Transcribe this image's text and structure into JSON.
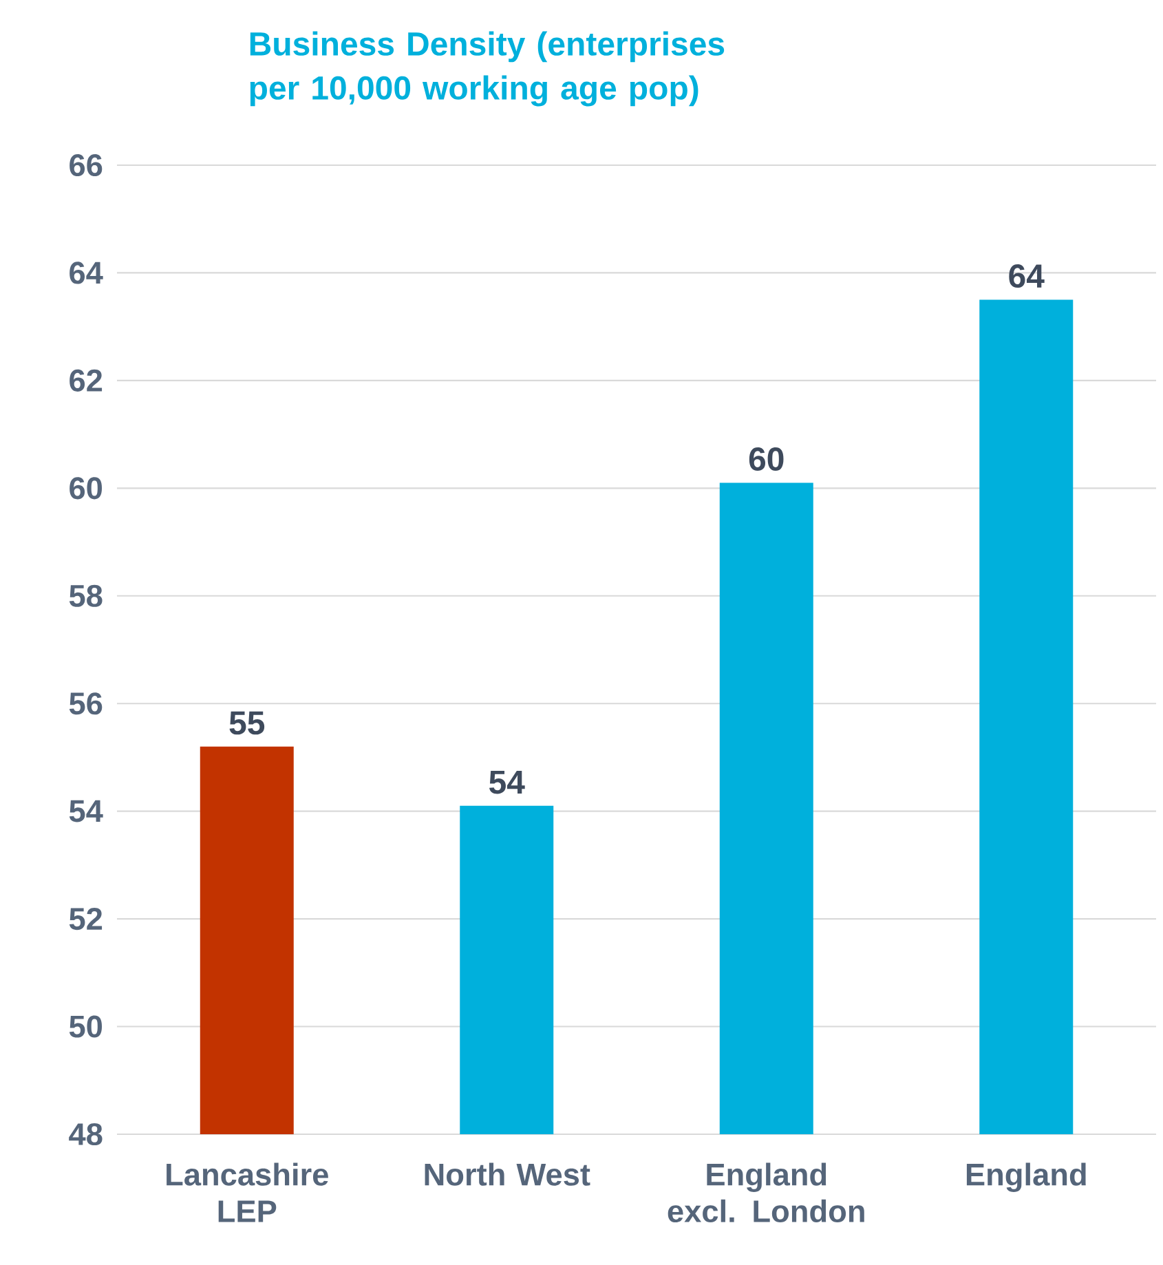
{
  "chart_data": {
    "type": "bar",
    "title": "Business Density (enterprises per 10,000 working age pop)",
    "categories": [
      "Lancashire LEP",
      "North West",
      "England excl. London",
      "England"
    ],
    "values": [
      55.2,
      54.1,
      60.1,
      63.5
    ],
    "colors": [
      "#c23300",
      "#00b0dc",
      "#00b0dc",
      "#00b0dc"
    ],
    "value_labels": [
      "55",
      "54",
      "60",
      "64"
    ],
    "ylim": [
      48,
      66
    ],
    "yticks": [
      48,
      50,
      52,
      54,
      56,
      58,
      60,
      62,
      64,
      66
    ],
    "grid": "y"
  }
}
